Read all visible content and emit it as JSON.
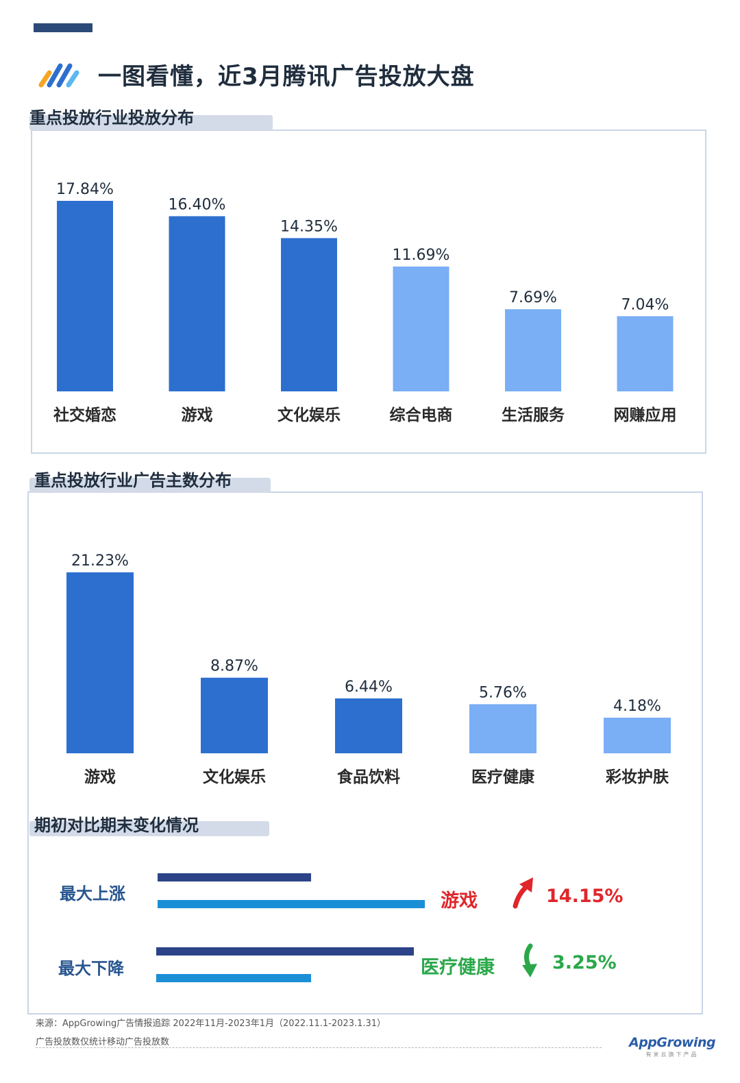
{
  "header": {
    "title": "一图看懂，近3月腾讯广告投放大盘"
  },
  "sections": {
    "industry": "重点投放行业投放分布",
    "advertisers": "重点投放行业广告主数分布",
    "change": "期初对比期末变化情况"
  },
  "chart_data": [
    {
      "type": "bar",
      "title": "重点投放行业投放分布",
      "categories": [
        "社交婚恋",
        "游戏",
        "文化娱乐",
        "综合电商",
        "生活服务",
        "网赚应用"
      ],
      "values": [
        17.84,
        16.4,
        14.35,
        11.69,
        7.69,
        7.04
      ],
      "labels": [
        "17.84%",
        "16.40%",
        "14.35%",
        "11.69%",
        "7.69%",
        "7.04%"
      ],
      "unit": "%",
      "bar_colors": [
        "#2d6fcf",
        "#2d6fcf",
        "#2d6fcf",
        "#7aaef5",
        "#7aaef5",
        "#7aaef5"
      ]
    },
    {
      "type": "bar",
      "title": "重点投放行业广告主数分布",
      "categories": [
        "游戏",
        "文化娱乐",
        "食品饮料",
        "医疗健康",
        "彩妆护肤"
      ],
      "values": [
        21.23,
        8.87,
        6.44,
        5.76,
        4.18
      ],
      "labels": [
        "21.23%",
        "8.87%",
        "6.44%",
        "5.76%",
        "4.18%"
      ],
      "unit": "%",
      "bar_colors": [
        "#2d6fcf",
        "#2d6fcf",
        "#2d6fcf",
        "#7aaef5",
        "#7aaef5"
      ]
    }
  ],
  "comparison": {
    "rise": {
      "label": "最大上涨",
      "industry": "游戏",
      "value": "14.15%",
      "direction": "up",
      "color": "#e0262b",
      "start_share": 0.575,
      "end_share": 1.0
    },
    "fall": {
      "label": "最大下降",
      "industry": "医疗健康",
      "value": "3.25%",
      "direction": "down",
      "color": "#2aa84a",
      "start_share": 1.0,
      "end_share": 0.6
    },
    "colors": {
      "start": "#2c4487",
      "end": "#1b8fd6"
    }
  },
  "footer": {
    "source": "来源：AppGrowing广告情报追踪 2022年11月-2023年1月（2022.11.1-2023.1.31）",
    "note": "广告投放数仅统计移动广告投放数",
    "brand": "AppGrowing",
    "brand_sub": "有米云旗下产品"
  }
}
